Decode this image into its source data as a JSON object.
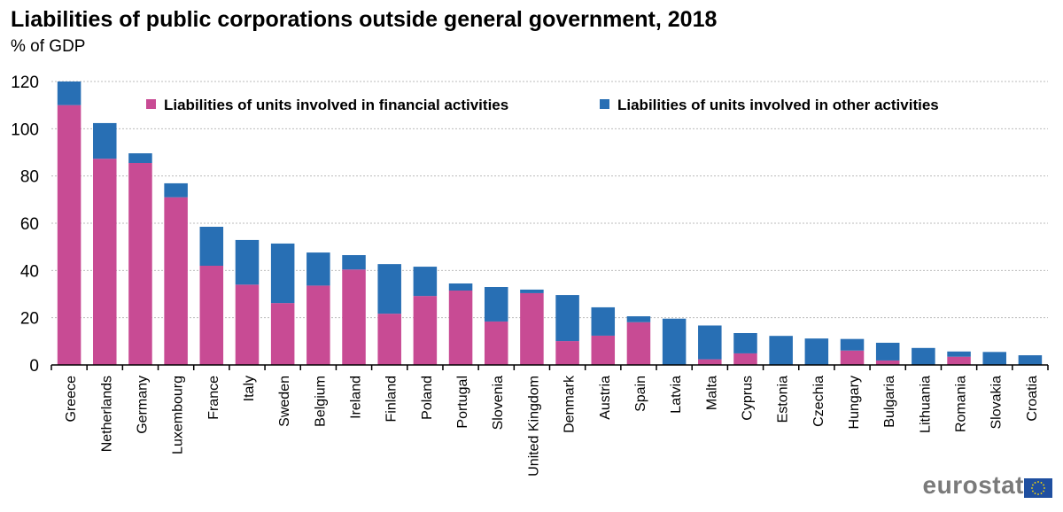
{
  "chart_data": {
    "type": "bar",
    "stacked": true,
    "title": "Liabilities of public corporations outside general government, 2018",
    "subtitle": "% of GDP",
    "xlabel": "",
    "ylabel": "% of GDP",
    "ylim": [
      0,
      120
    ],
    "yticks": [
      0,
      20,
      40,
      60,
      80,
      100,
      120
    ],
    "grid": true,
    "legend_position": "top",
    "categories": [
      "Greece",
      "Netherlands",
      "Germany",
      "Luxembourg",
      "France",
      "Italy",
      "Sweden",
      "Belgium",
      "Ireland",
      "Finland",
      "Poland",
      "Portugal",
      "Slovenia",
      "United Kingdom",
      "Denmark",
      "Austria",
      "Spain",
      "Latvia",
      "Malta",
      "Cyprus",
      "Estonia",
      "Czechia",
      "Hungary",
      "Bulgaria",
      "Lithuania",
      "Romania",
      "Slovakia",
      "Croatia"
    ],
    "series": [
      {
        "name": "Liabilities of units involved in financial activities",
        "color": "#c84b94",
        "values": [
          110,
          87.3,
          85.5,
          71.0,
          42.0,
          34.0,
          26.2,
          33.6,
          40.4,
          21.7,
          29.2,
          31.5,
          18.4,
          30.4,
          10.1,
          12.4,
          18.1,
          0,
          2.4,
          4.9,
          0,
          0,
          6.1,
          1.9,
          0,
          3.5,
          0,
          0
        ]
      },
      {
        "name": "Liabilities of units involved in other activities",
        "color": "#286fb4",
        "values": [
          10,
          15.1,
          4.1,
          5.9,
          16.5,
          18.9,
          25.2,
          14.0,
          6.1,
          21.0,
          12.4,
          3.0,
          14.6,
          1.5,
          19.5,
          12.0,
          2.5,
          19.6,
          14.3,
          8.6,
          12.3,
          11.2,
          4.9,
          7.5,
          7.2,
          2.2,
          5.5,
          4.1
        ]
      }
    ]
  },
  "branding": {
    "logo_text": "eurostat"
  }
}
